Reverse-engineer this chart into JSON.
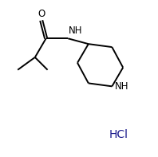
{
  "background": "#ffffff",
  "bond_color": "#000000",
  "NH_color": "#000000",
  "O_color": "#000000",
  "HCl_color": "#1a1a8c",
  "HCl_text": "HCl",
  "label_O": "O",
  "label_NH1": "NH",
  "label_NH2": "NH",
  "figsize": [
    1.98,
    1.97
  ],
  "dpi": 100,
  "xlim": [
    0,
    10
  ],
  "ylim": [
    0,
    10
  ],
  "bond_lw": 1.4,
  "font_size_atom": 8.5,
  "font_size_HCl": 10
}
